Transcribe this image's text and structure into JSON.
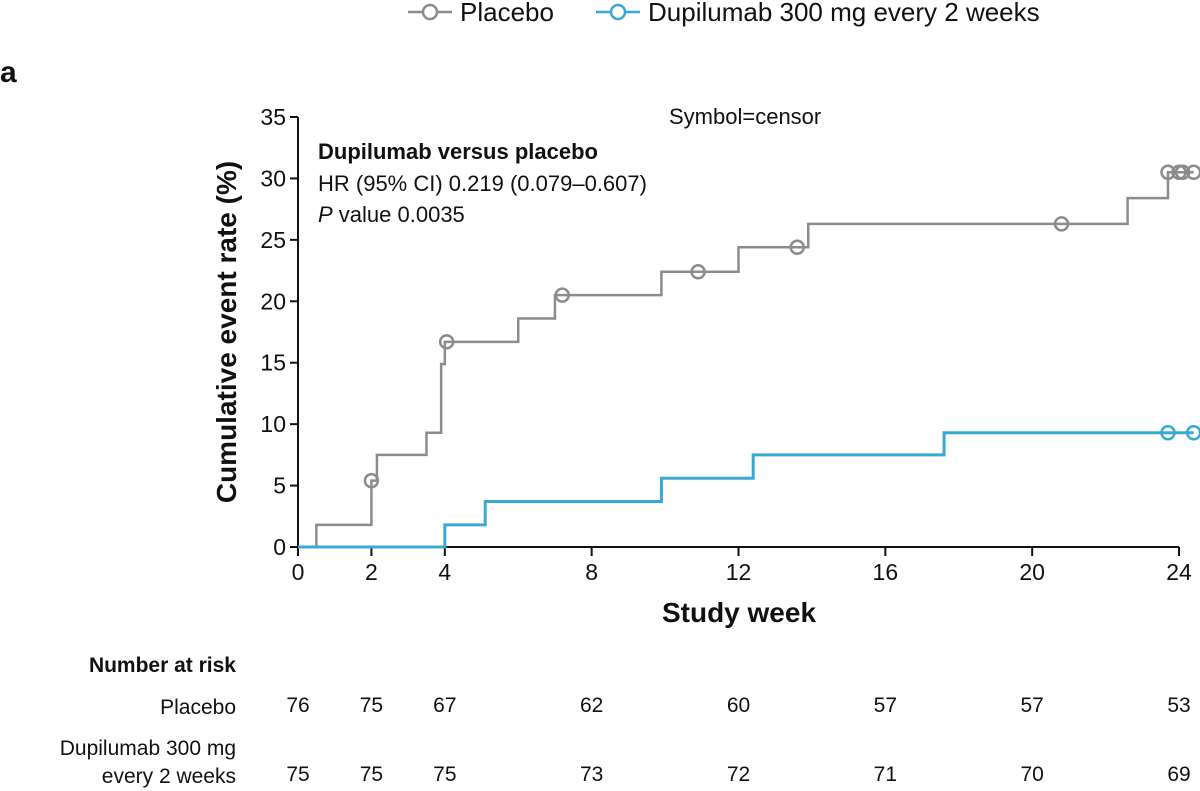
{
  "panel_label": "a",
  "colors": {
    "placebo": "#8c8c8c",
    "dupilumab": "#3aa8d4",
    "axis": "#111111"
  },
  "chart_data": {
    "type": "line",
    "subtype": "kaplan-meier-step",
    "xlabel": "Study week",
    "ylabel": "Cumulative event rate (%)",
    "xlim": [
      0,
      24
    ],
    "ylim": [
      0,
      35
    ],
    "xticks": [
      0,
      2,
      4,
      8,
      12,
      16,
      20,
      24
    ],
    "xtick_labels": [
      "0",
      "2",
      "4",
      "8",
      "12",
      "16",
      "20",
      "24"
    ],
    "yticks": [
      0,
      5,
      10,
      15,
      20,
      25,
      30,
      35
    ],
    "ytick_labels": [
      "0",
      "5",
      "10",
      "15",
      "20",
      "25",
      "30",
      "35"
    ],
    "grid": false,
    "legend": {
      "placement": "top-right",
      "entries": [
        "Placebo",
        "Dupilumab 300 mg every 2 weeks"
      ]
    },
    "annotations": {
      "symbol_note": "Symbol=censor",
      "comparison_title": "Dupilumab versus placebo",
      "hr_text": "HR (95% CI) 0.219 (0.079–0.607)",
      "p_italic": "P",
      "p_text": " value 0.0035"
    },
    "series": [
      {
        "name": "Placebo",
        "steps": [
          [
            0,
            0
          ],
          [
            0.5,
            1.8
          ],
          [
            2.0,
            5.4
          ],
          [
            2.15,
            7.5
          ],
          [
            3.5,
            9.3
          ],
          [
            3.9,
            14.9
          ],
          [
            4.0,
            16.7
          ],
          [
            6.0,
            18.6
          ],
          [
            7.0,
            20.5
          ],
          [
            9.9,
            22.4
          ],
          [
            12.0,
            24.4
          ],
          [
            13.9,
            26.3
          ],
          [
            22.6,
            28.4
          ],
          [
            23.7,
            30.5
          ],
          [
            24.4,
            30.5
          ]
        ],
        "censors": [
          [
            2.0,
            5.4
          ],
          [
            4.05,
            16.7
          ],
          [
            7.2,
            20.5
          ],
          [
            10.9,
            22.4
          ],
          [
            13.6,
            24.4
          ],
          [
            20.8,
            26.3
          ],
          [
            23.7,
            30.5
          ],
          [
            24.0,
            30.5
          ],
          [
            24.1,
            30.5
          ],
          [
            24.4,
            30.5
          ]
        ]
      },
      {
        "name": "Dupilumab 300 mg every 2 weeks",
        "steps": [
          [
            0,
            0
          ],
          [
            4.0,
            1.8
          ],
          [
            5.1,
            3.7
          ],
          [
            9.9,
            5.6
          ],
          [
            12.4,
            7.5
          ],
          [
            17.6,
            9.3
          ],
          [
            24.4,
            9.3
          ]
        ],
        "censors": [
          [
            23.7,
            9.3
          ],
          [
            24.4,
            9.3
          ]
        ]
      }
    ]
  },
  "risk_table": {
    "title": "Number at risk",
    "weeks": [
      0,
      2,
      4,
      8,
      12,
      16,
      20,
      24
    ],
    "rows": [
      {
        "label_lines": [
          "Placebo"
        ],
        "values": [
          "76",
          "75",
          "67",
          "62",
          "60",
          "57",
          "57",
          "53"
        ]
      },
      {
        "label_lines": [
          "Dupilumab 300 mg",
          "every 2 weeks"
        ],
        "values": [
          "75",
          "75",
          "75",
          "73",
          "72",
          "71",
          "70",
          "69"
        ]
      }
    ]
  }
}
